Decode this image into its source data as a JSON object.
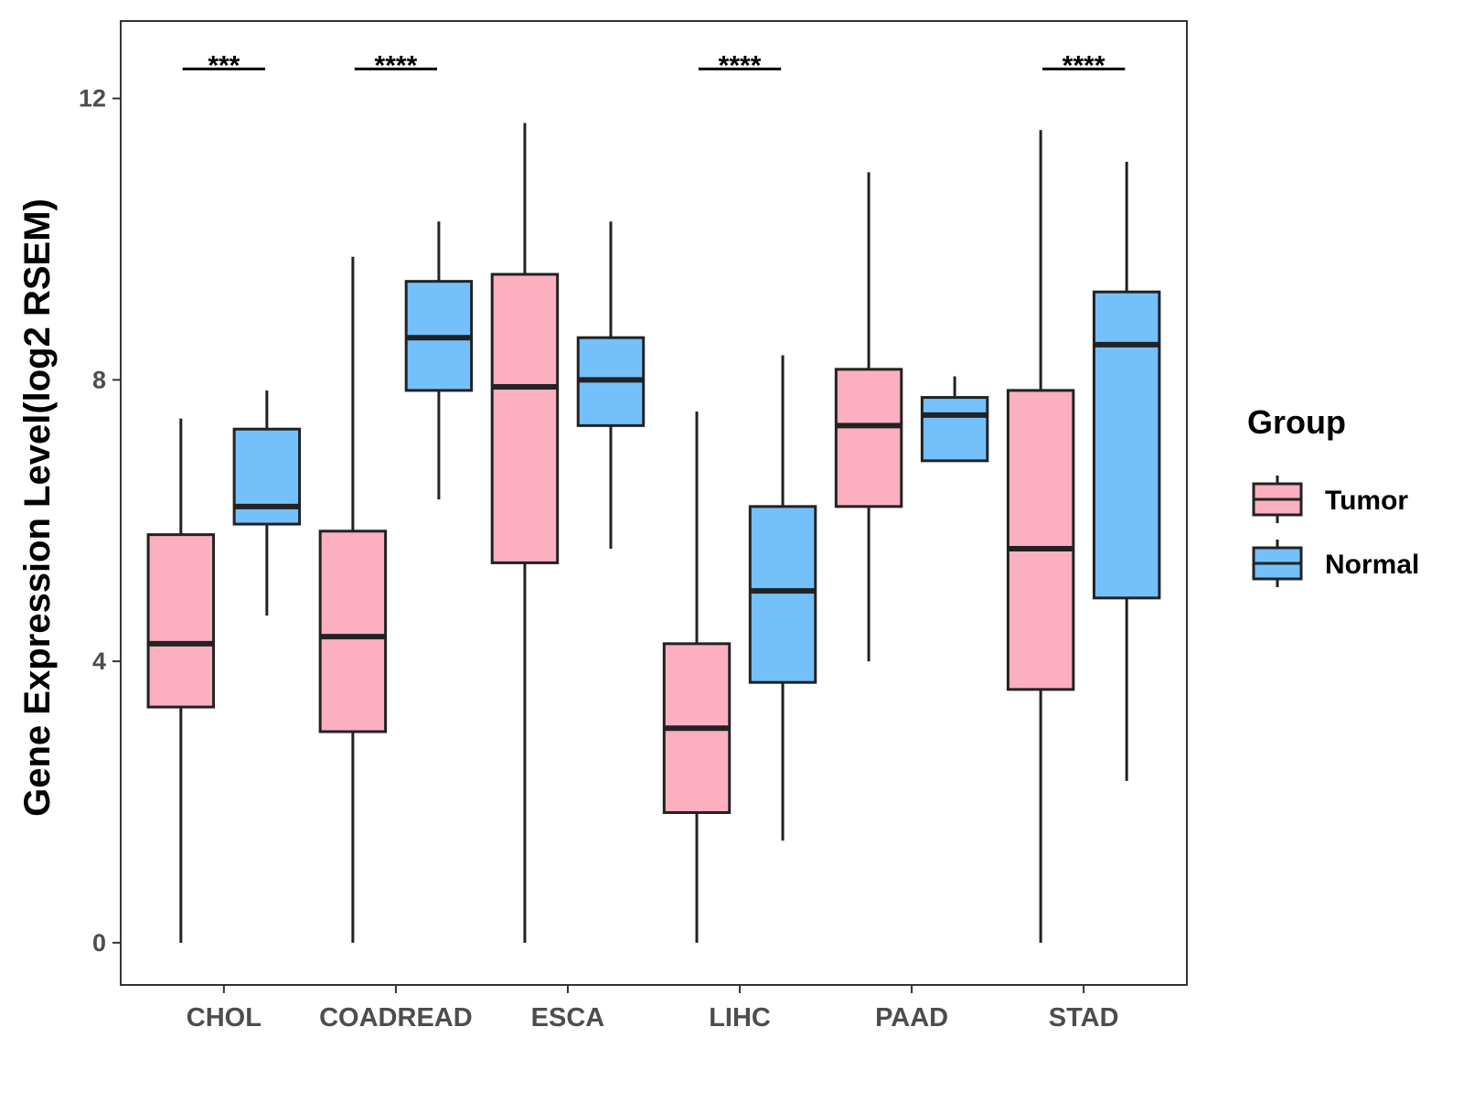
{
  "chart_data": {
    "type": "boxplot",
    "title": "",
    "xlabel": "",
    "ylabel": "Gene Expression Level(log2 RSEM)",
    "ylim": [
      -0.6,
      13.1
    ],
    "yticks": [
      0,
      4,
      8,
      12
    ],
    "grid": false,
    "legend": {
      "title": "Group",
      "position": "right"
    },
    "categories": [
      "CHOL",
      "COADREAD",
      "ESCA",
      "LIHC",
      "PAAD",
      "STAD"
    ],
    "series": [
      {
        "name": "Tumor",
        "color": "#FBAFC1",
        "boxes": [
          {
            "min": 0.0,
            "q1": 3.35,
            "median": 4.25,
            "q3": 5.8,
            "max": 7.45
          },
          {
            "min": 0.0,
            "q1": 3.0,
            "median": 4.35,
            "q3": 5.85,
            "max": 9.75
          },
          {
            "min": 0.0,
            "q1": 5.4,
            "median": 7.9,
            "q3": 9.5,
            "max": 11.65
          },
          {
            "min": 0.0,
            "q1": 1.85,
            "median": 3.05,
            "q3": 4.25,
            "max": 7.55
          },
          {
            "min": 4.0,
            "q1": 6.2,
            "median": 7.35,
            "q3": 8.15,
            "max": 10.95
          },
          {
            "min": 0.0,
            "q1": 3.6,
            "median": 5.6,
            "q3": 7.85,
            "max": 11.55
          }
        ]
      },
      {
        "name": "Normal",
        "color": "#74C0FA",
        "boxes": [
          {
            "min": 4.65,
            "q1": 5.95,
            "median": 6.2,
            "q3": 7.3,
            "max": 7.85
          },
          {
            "min": 6.3,
            "q1": 7.85,
            "median": 8.6,
            "q3": 9.4,
            "max": 10.25
          },
          {
            "min": 5.6,
            "q1": 7.35,
            "median": 8.0,
            "q3": 8.6,
            "max": 10.25
          },
          {
            "min": 1.45,
            "q1": 3.7,
            "median": 5.0,
            "q3": 6.2,
            "max": 8.35
          },
          {
            "min": 6.85,
            "q1": 6.85,
            "median": 7.5,
            "q3": 7.75,
            "max": 8.05
          },
          {
            "min": 2.3,
            "q1": 4.9,
            "median": 8.5,
            "q3": 9.25,
            "max": 11.1
          }
        ]
      }
    ],
    "significance": [
      {
        "category": "CHOL",
        "label": "***",
        "y": 12.42
      },
      {
        "category": "COADREAD",
        "label": "****",
        "y": 12.42
      },
      {
        "category": "LIHC",
        "label": "****",
        "y": 12.42
      },
      {
        "category": "STAD",
        "label": "****",
        "y": 12.42
      }
    ]
  }
}
